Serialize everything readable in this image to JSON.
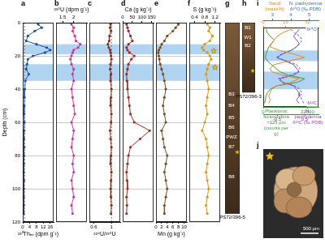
{
  "bands": [
    [
      13,
      19
    ],
    [
      25,
      35
    ]
  ],
  "chart_data": [
    {
      "panel": "a",
      "type": "line",
      "xlabel": "²³⁰Thₑₓ (dpm g⁻¹)",
      "ylabel": "Depth (cm)",
      "xlim": [
        0,
        18
      ],
      "xticks": [
        0,
        4,
        8,
        12,
        16
      ],
      "ylim": [
        0,
        120
      ],
      "yticks": [
        0,
        20,
        40,
        60,
        80,
        100,
        120
      ],
      "grid": true,
      "ref_x": 1,
      "series": [
        {
          "color": "#1f4e9c",
          "marker": "circle",
          "x": [
            9,
            11,
            7,
            3,
            2,
            8,
            14,
            16,
            13,
            6,
            3,
            2.5,
            2,
            3.5,
            1.5,
            1.2,
            1,
            0.9,
            0.8,
            1,
            0.8,
            0.7,
            0.9,
            0.7,
            0.6,
            0.6,
            0.7,
            0.6,
            0.5,
            0.6,
            0.5
          ],
          "y": [
            1,
            3,
            5,
            8,
            11,
            13,
            15,
            16.5,
            18,
            20,
            22,
            25,
            28,
            31,
            35,
            40,
            45,
            50,
            55,
            60,
            65,
            70,
            75,
            80,
            85,
            90,
            95,
            100,
            105,
            110,
            115
          ]
        }
      ]
    },
    {
      "panel": "b",
      "type": "line",
      "xlabel": "²³⁸U (dpm g⁻¹)",
      "tick_labels": "x",
      "xlim": [
        1.2,
        2.6
      ],
      "xticks": [
        1.5,
        2
      ],
      "ylim": [
        0,
        120
      ],
      "yticks": [
        0,
        20,
        40,
        60,
        80,
        100,
        120
      ],
      "grid": true,
      "series": [
        {
          "color": "#c0399b",
          "marker": "circle",
          "x": [
            1.9,
            2.0,
            1.95,
            2.05,
            2.1,
            2.3,
            2.2,
            2.0,
            1.95,
            1.9,
            1.85,
            1.9,
            2.0,
            1.95,
            2.0,
            1.9,
            1.95,
            2.0,
            2.05,
            1.9,
            2.0,
            1.95,
            1.9,
            2.0,
            1.95,
            2.0,
            1.9,
            1.95,
            2.0,
            1.9,
            1.95
          ],
          "y": [
            1,
            3,
            5,
            8,
            11,
            13,
            15,
            16.5,
            18,
            20,
            22,
            25,
            28,
            31,
            35,
            40,
            45,
            50,
            55,
            60,
            65,
            70,
            75,
            80,
            85,
            90,
            95,
            100,
            105,
            110,
            115
          ]
        }
      ]
    },
    {
      "panel": "c",
      "type": "line",
      "xlabel": "²³⁴U/²³⁸U",
      "tick_labels": "x",
      "xlim": [
        0.5,
        1.2
      ],
      "xticks": [
        0.6,
        1
      ],
      "ylim": [
        0,
        120
      ],
      "yticks": [
        0,
        20,
        40,
        60,
        80,
        100,
        120
      ],
      "grid": true,
      "ref_x": 1,
      "series": [
        {
          "color": "#8b2a1a",
          "marker": "circle",
          "x": [
            0.98,
            0.97,
            0.99,
            0.96,
            0.95,
            0.92,
            0.94,
            0.97,
            0.98,
            0.99,
            1.0,
            0.98,
            0.97,
            0.99,
            0.98,
            1.0,
            0.99,
            0.98,
            1.0,
            0.99,
            0.97,
            0.98,
            1.0,
            0.99,
            0.98,
            1.0,
            0.99,
            0.98,
            0.99,
            1.0,
            0.99
          ],
          "y": [
            1,
            3,
            5,
            8,
            11,
            13,
            15,
            16.5,
            18,
            20,
            22,
            25,
            28,
            31,
            35,
            40,
            45,
            50,
            55,
            60,
            65,
            70,
            75,
            80,
            85,
            90,
            95,
            100,
            105,
            110,
            115
          ]
        }
      ]
    },
    {
      "panel": "d",
      "type": "line",
      "xlabel": "Ca (g kg⁻¹)",
      "tick_labels": "x",
      "xlim": [
        0,
        160
      ],
      "xticks": [
        0,
        50,
        100,
        150
      ],
      "ylim": [
        0,
        120
      ],
      "yticks": [
        0,
        20,
        40,
        60,
        80,
        100,
        120
      ],
      "grid": true,
      "series": [
        {
          "color": "#a0281e",
          "marker": "circle",
          "x": [
            20,
            25,
            30,
            40,
            50,
            30,
            20,
            25,
            35,
            60,
            45,
            30,
            25,
            20,
            22,
            25,
            30,
            35,
            40,
            60,
            140,
            90,
            40,
            30,
            25,
            20,
            22,
            25,
            20,
            22,
            20
          ],
          "y": [
            1,
            3,
            5,
            8,
            11,
            13,
            15,
            16.5,
            18,
            20,
            22,
            25,
            28,
            31,
            35,
            40,
            45,
            50,
            55,
            60,
            65,
            70,
            75,
            80,
            85,
            90,
            95,
            100,
            105,
            110,
            115
          ]
        }
      ]
    },
    {
      "panel": "e",
      "type": "line",
      "xlabel": "Mn (g kg⁻¹)",
      "tick_labels": "x",
      "xlim": [
        0,
        11
      ],
      "xticks": [
        0,
        2,
        4,
        6,
        8,
        10
      ],
      "ylim": [
        0,
        120
      ],
      "yticks": [
        0,
        20,
        40,
        60,
        80,
        100,
        120
      ],
      "grid": true,
      "series": [
        {
          "color": "#7a4a1a",
          "marker": "circle",
          "x": [
            8,
            7,
            6,
            4,
            3,
            2,
            1.5,
            1,
            0.8,
            1,
            1.2,
            1.5,
            2,
            2.5,
            3,
            3.5,
            3,
            2.5,
            3,
            3.5,
            2,
            2.5,
            3,
            4,
            3.5,
            3,
            3.5,
            4,
            3.5,
            3,
            3
          ],
          "y": [
            1,
            3,
            5,
            8,
            11,
            13,
            15,
            16.5,
            18,
            20,
            22,
            25,
            28,
            31,
            35,
            40,
            45,
            50,
            55,
            60,
            65,
            70,
            75,
            80,
            85,
            90,
            95,
            100,
            105,
            110,
            115
          ]
        }
      ]
    },
    {
      "panel": "f",
      "type": "line",
      "xlabel": "S (g kg⁻¹)",
      "tick_labels": "x",
      "xlim": [
        0.2,
        1.4
      ],
      "xticks": [
        0.4,
        0.8,
        1.2
      ],
      "ylim": [
        0,
        120
      ],
      "yticks": [
        0,
        20,
        40,
        60,
        80,
        100,
        120
      ],
      "grid": true,
      "stars": [
        {
          "x": 1.15,
          "y": 17
        },
        {
          "x": 1.2,
          "y": 27
        }
      ],
      "series": [
        {
          "color": "#d49a17",
          "marker": "circle",
          "x": [
            0.9,
            1.0,
            0.95,
            1.1,
            1.0,
            0.8,
            0.7,
            0.75,
            0.9,
            1.0,
            1.05,
            0.95,
            0.9,
            0.85,
            0.9,
            0.95,
            0.9,
            0.85,
            0.9,
            0.8,
            0.7,
            0.85,
            0.9,
            0.95,
            0.9,
            0.85,
            0.9,
            0.95,
            0.9,
            0.85,
            0.9
          ],
          "y": [
            1,
            3,
            5,
            8,
            11,
            13,
            15,
            16.5,
            18,
            20,
            22,
            25,
            28,
            31,
            35,
            40,
            45,
            50,
            55,
            60,
            65,
            70,
            75,
            80,
            85,
            90,
            95,
            100,
            105,
            110,
            115
          ]
        }
      ]
    },
    {
      "panel": "i",
      "type": "line",
      "ylim": [
        0,
        45
      ],
      "tick_labels": "x",
      "grid": false,
      "series": [
        {
          "color": "#e8871e",
          "xlabel": "Sand (mass%)",
          "xlim": [
            0,
            40
          ],
          "xticks": [
            0,
            16,
            32
          ],
          "x": [
            20,
            14,
            10,
            8,
            6,
            5,
            12,
            22,
            30,
            18,
            8,
            5,
            6,
            14,
            26,
            20,
            10,
            6,
            5,
            4,
            5,
            4
          ],
          "y": [
            1,
            3,
            5,
            7,
            9,
            11,
            13,
            15,
            17,
            19,
            21,
            23,
            25,
            27,
            29,
            31,
            33,
            35,
            37,
            39,
            41,
            43
          ]
        },
        {
          "name": "δ¹⁸O",
          "color": "#3a6fc4",
          "line_style": "dashed",
          "xlabel": "N. pachyderma δ¹⁸O (‰ PDB)",
          "xlim": [
            2.5,
            5.5
          ],
          "xticks": [
            3,
            4,
            5
          ],
          "x": [
            4.0,
            4.2,
            4.5,
            4.6,
            4.5,
            4.3,
            4.0,
            3.5,
            3.2,
            3.8,
            4.3,
            4.5,
            4.4,
            4.0,
            3.3,
            3.5,
            4.2,
            4.5,
            4.6,
            4.5,
            4.6,
            4.7
          ],
          "y": [
            1,
            3,
            5,
            7,
            9,
            11,
            13,
            15,
            17,
            19,
            21,
            23,
            25,
            27,
            29,
            31,
            33,
            35,
            37,
            39,
            41,
            43
          ]
        },
        {
          "color": "#3a9a3a",
          "xlabel": "Planktonic foraminifera >125 µm (counts per g)",
          "xlim": [
            0,
            40000
          ],
          "xticks": [
            0,
            32000
          ],
          "x": [
            2000,
            3000,
            5000,
            8000,
            6000,
            4000,
            3000,
            2000,
            1500,
            3000,
            6000,
            9000,
            12000,
            18000,
            30000,
            25000,
            10000,
            5000,
            3000,
            2000,
            1500,
            1000
          ],
          "y": [
            1,
            3,
            5,
            7,
            9,
            11,
            13,
            15,
            17,
            19,
            21,
            23,
            25,
            27,
            29,
            31,
            33,
            35,
            37,
            39,
            41,
            43
          ]
        },
        {
          "name": "δ¹³C",
          "color": "#8e44ad",
          "xlabel": "N. pachyderma δ¹³C (‰ PDB)",
          "xlim": [
            -1,
            1
          ],
          "xticks": [
            -0.5,
            0.5
          ],
          "x": [
            0.3,
            0.2,
            0.1,
            0.2,
            0.3,
            0.2,
            0,
            -0.3,
            -0.5,
            -0.2,
            0.1,
            0.2,
            0.3,
            0.1,
            -0.4,
            -0.3,
            0.1,
            0.2,
            0.3,
            0.3,
            0.2,
            0.3
          ],
          "y": [
            1,
            3,
            5,
            7,
            9,
            11,
            13,
            15,
            17,
            19,
            21,
            23,
            25,
            27,
            29,
            31,
            33,
            35,
            37,
            39,
            41,
            43
          ]
        }
      ]
    }
  ],
  "cores": [
    {
      "panel": "g",
      "label": "PS72/396-5",
      "ylim": [
        0,
        120
      ],
      "core_range": [
        0,
        115
      ],
      "units": [
        {
          "name": "B3",
          "depth": 43
        },
        {
          "name": "B4",
          "depth": 50
        },
        {
          "name": "B5",
          "depth": 57
        },
        {
          "name": "B6",
          "depth": 63
        },
        {
          "name": "PWZ",
          "depth": 69
        },
        {
          "name": "B7",
          "depth": 75
        },
        {
          "name": "B8",
          "depth": 93
        }
      ],
      "stars": [
        78
      ]
    },
    {
      "panel": "h",
      "label": "PS72/396-3",
      "ylim": [
        0,
        120
      ],
      "core_range": [
        0,
        42
      ],
      "units": [
        {
          "name": "B1",
          "depth": 3
        },
        {
          "name": "W1",
          "depth": 9
        },
        {
          "name": "B2",
          "depth": 14
        }
      ],
      "stars": [
        29
      ]
    }
  ],
  "image": {
    "panel": "j",
    "scale_label": "500 µm"
  }
}
